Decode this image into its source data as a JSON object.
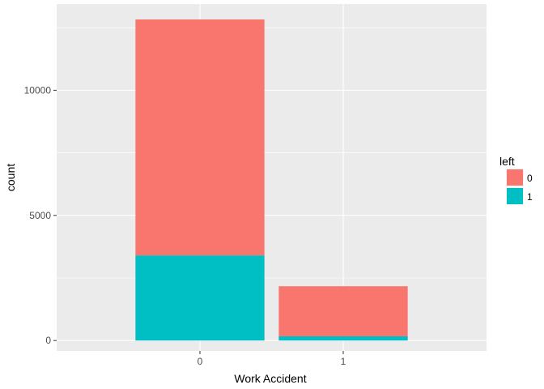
{
  "chart_data": {
    "type": "bar",
    "stacked": true,
    "categories": [
      "0",
      "1"
    ],
    "series": [
      {
        "name": "0",
        "values": [
          9428,
          2000
        ],
        "color": "#F8766D"
      },
      {
        "name": "1",
        "values": [
          3402,
          169
        ],
        "color": "#00BFC4"
      }
    ],
    "xlabel": "Work Accident",
    "ylabel": "count",
    "ylim": [
      -415,
      13445
    ],
    "yticks": [
      0,
      5000,
      10000
    ],
    "ytick_labels": [
      "0",
      "5000",
      "10000"
    ],
    "grid": true,
    "legend": {
      "title": "left",
      "position": "right",
      "items": [
        "0",
        "1"
      ]
    }
  }
}
